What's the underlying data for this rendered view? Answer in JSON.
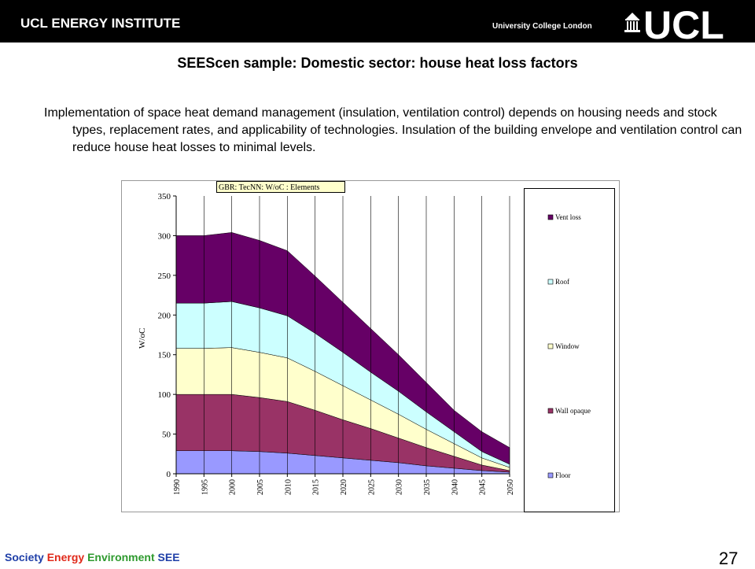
{
  "header": {
    "institute": "UCL ENERGY INSTITUTE",
    "university": "University College London",
    "logo_text": "UCL",
    "bar_color": "#000000"
  },
  "slide": {
    "title": "SEEScen sample: Domestic sector: house heat loss factors",
    "paragraph": "Implementation of space heat demand management (insulation, ventilation control) depends on housing needs and stock types, replacement rates, and applicability of technologies. Insulation of the building envelope and ventilation control can reduce house heat losses to minimal levels.",
    "page_number": "27"
  },
  "footer": {
    "parts": [
      "Society ",
      "Energy ",
      "Environment ",
      "SEE"
    ],
    "colors": [
      "#1f3fa8",
      "#e0291a",
      "#2e9a2e",
      "#1f3fa8"
    ]
  },
  "chart_data": {
    "type": "area",
    "stacked": true,
    "title": "GBR: TecNN: W/oC : Elements",
    "xlabel": "",
    "ylabel": "W/oC",
    "ylim": [
      0,
      350
    ],
    "yticks": [
      0,
      50,
      100,
      150,
      200,
      250,
      300,
      350
    ],
    "grid": "vertical",
    "legend_position": "right",
    "x": [
      1990,
      1995,
      2000,
      2005,
      2010,
      2015,
      2020,
      2025,
      2030,
      2035,
      2040,
      2045,
      2050
    ],
    "x_tick_labels": [
      "1990",
      "1995",
      "2000",
      "2005",
      "2010",
      "2015",
      "2020",
      "2025",
      "2030",
      "2035",
      "2040",
      "2045",
      "2050"
    ],
    "series": [
      {
        "name": "Floor",
        "color": "#9999ff",
        "values": [
          29,
          29,
          29,
          28,
          26,
          23,
          20,
          17,
          14,
          10,
          7,
          4,
          2
        ]
      },
      {
        "name": "Wall opaque",
        "color": "#993366",
        "values": [
          71,
          71,
          71,
          68,
          65,
          57,
          48,
          40,
          31,
          23,
          15,
          7,
          2
        ]
      },
      {
        "name": "Window",
        "color": "#ffffcc",
        "values": [
          58,
          58,
          59,
          57,
          55,
          49,
          43,
          36,
          30,
          23,
          16,
          9,
          4
        ]
      },
      {
        "name": "Roof",
        "color": "#ccffff",
        "values": [
          57,
          57,
          58,
          56,
          53,
          48,
          42,
          35,
          29,
          22,
          15,
          8,
          4
        ]
      },
      {
        "name": "Vent loss",
        "color": "#660066",
        "values": [
          85,
          85,
          87,
          85,
          82,
          72,
          63,
          55,
          46,
          37,
          27,
          25,
          21
        ]
      }
    ]
  }
}
